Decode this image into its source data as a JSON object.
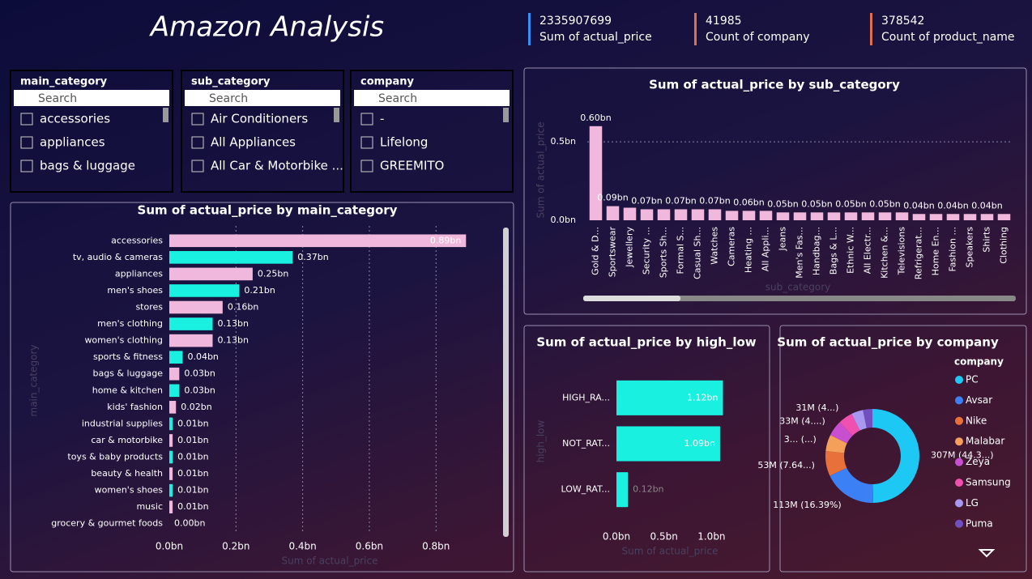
{
  "header": {
    "title": "Amazon Analysis"
  },
  "kpis": [
    {
      "value": 2335907699,
      "label": "Sum of actual_price"
    },
    {
      "value": 41985,
      "label": "Count of company"
    },
    {
      "value": 378542,
      "label": "Count of product_name"
    }
  ],
  "slicers": [
    {
      "title": "main_category",
      "search": "Search",
      "items": [
        "accessories",
        "appliances",
        "bags & luggage"
      ]
    },
    {
      "title": "sub_category",
      "search": "Search",
      "items": [
        "Air Conditioners",
        "All Appliances",
        "All Car & Motorbike ..."
      ]
    },
    {
      "title": "company",
      "search": "Search",
      "items": [
        "-",
        "Lifelong",
        "GREEMITO"
      ]
    }
  ],
  "chart_data": [
    {
      "type": "hbar",
      "title": "Sum of actual_price by main_category",
      "categories": [
        "accessories",
        "tv, audio & cameras",
        "appliances",
        "men's shoes",
        "stores",
        "men's clothing",
        "women's clothing",
        "sports & fitness",
        "bags & luggage",
        "home & kitchen",
        "kids' fashion",
        "industrial supplies",
        "car & motorbike",
        "toys & baby products",
        "beauty & health",
        "women's shoes",
        "music",
        "grocery & gourmet foods"
      ],
      "values": [
        0.89,
        0.37,
        0.25,
        0.21,
        0.16,
        0.13,
        0.13,
        0.04,
        0.03,
        0.03,
        0.02,
        0.01,
        0.01,
        0.01,
        0.01,
        0.01,
        0.01,
        0.0
      ],
      "value_labels": [
        "0.89bn",
        "0.37bn",
        "0.25bn",
        "0.21bn",
        "0.16bn",
        "0.13bn",
        "0.13bn",
        "0.04bn",
        "0.03bn",
        "0.03bn",
        "0.02bn",
        "0.01bn",
        "0.01bn",
        "0.01bn",
        "0.01bn",
        "0.01bn",
        "0.01bn",
        "0.00bn"
      ],
      "colors": [
        "#f0b8dc",
        "#19f0e0",
        "#f0b8dc",
        "#19f0e0",
        "#f0b8dc",
        "#19f0e0",
        "#f0b8dc",
        "#19f0e0",
        "#f0b8dc",
        "#19f0e0",
        "#f0b8dc",
        "#19f0e0",
        "#f0b8dc",
        "#19f0e0",
        "#f0b8dc",
        "#19f0e0",
        "#f0b8dc",
        "#19f0e0"
      ],
      "xlim": [
        0,
        0.95
      ],
      "xticks": [
        {
          "value": 0,
          "label": "0.0bn"
        },
        {
          "value": 0.2,
          "label": "0.2bn"
        },
        {
          "value": 0.4,
          "label": "0.4bn"
        },
        {
          "value": 0.6,
          "label": "0.6bn"
        },
        {
          "value": 0.8,
          "label": "0.8bn"
        }
      ],
      "xlabel": "Sum of actual_price",
      "ylabel": "main_category",
      "grid": true
    },
    {
      "type": "bar",
      "title": "Sum of actual_price by sub_category",
      "categories": [
        "Gold & D...",
        "Sportswear",
        "Jewellery",
        "Security ...",
        "Sports Sh...",
        "Formal S...",
        "Casual Sh...",
        "Watches",
        "Cameras",
        "Heating ...",
        "All Appli...",
        "Jeans",
        "Men's Fas...",
        "Handbag...",
        "Bags & L...",
        "Ethnic W...",
        "All Electr...",
        "Kitchen &...",
        "Televisions",
        "Refrigerat...",
        "Home En...",
        "Fashion ...",
        "Speakers",
        "Shirts",
        "Clothing"
      ],
      "values": [
        0.6,
        0.09,
        0.08,
        0.07,
        0.07,
        0.07,
        0.07,
        0.07,
        0.06,
        0.06,
        0.06,
        0.05,
        0.05,
        0.05,
        0.05,
        0.05,
        0.05,
        0.05,
        0.05,
        0.04,
        0.04,
        0.04,
        0.04,
        0.04,
        0.04
      ],
      "value_labels": [
        "0.60bn",
        "0.09bn",
        null,
        "0.07bn",
        null,
        "0.07bn",
        null,
        "0.07bn",
        null,
        "0.06bn",
        null,
        "0.05bn",
        null,
        "0.05bn",
        null,
        "0.05bn",
        null,
        "0.05bn",
        null,
        "0.04bn",
        null,
        "0.04bn",
        null,
        "0.04bn",
        null
      ],
      "color": "#f0b8dc",
      "ylim": [
        0,
        0.63
      ],
      "yticks": [
        {
          "value": 0,
          "label": "0.0bn"
        },
        {
          "value": 0.5,
          "label": "0.5bn"
        }
      ],
      "xlabel": "sub_category",
      "ylabel": "Sum of actual_price",
      "grid": true
    },
    {
      "type": "hbar",
      "title": "Sum of actual_price by high_low",
      "categories": [
        "HIGH_RA...",
        "NOT_RAT...",
        "LOW_RAT..."
      ],
      "values": [
        1.12,
        1.09,
        0.12
      ],
      "value_labels": [
        "1.12bn",
        "1.09bn",
        "0.12bn"
      ],
      "colors": [
        "#19f0e0",
        "#19f0e0",
        "#19f0e0"
      ],
      "xlim": [
        0,
        1.15
      ],
      "xticks": [
        {
          "value": 0,
          "label": "0.0bn"
        },
        {
          "value": 0.5,
          "label": "0.5bn"
        },
        {
          "value": 1.0,
          "label": "1.0bn"
        }
      ],
      "xlabel": "Sum of actual_price",
      "ylabel": "high_low",
      "grid": false
    },
    {
      "type": "pie",
      "title": "Sum of actual_price by company",
      "legend_title": "company",
      "categories": [
        "PC",
        "Avsar",
        "Nike",
        "Malabar",
        "Zeya",
        "Samsung",
        "LG",
        "Puma"
      ],
      "values": [
        307,
        113,
        53,
        35,
        33,
        31,
        25,
        20
      ],
      "value_labels": [
        "307M (44.3...)",
        "113M (16.39%)",
        "53M (7.64...)",
        "3... (...)",
        "33M (4....)",
        "31M (4...)",
        null,
        null
      ],
      "colors": [
        "#1ec8f5",
        "#3b80f5",
        "#e8703a",
        "#f5a05a",
        "#c850d0",
        "#f050b0",
        "#a898f0",
        "#7050c0"
      ]
    }
  ]
}
